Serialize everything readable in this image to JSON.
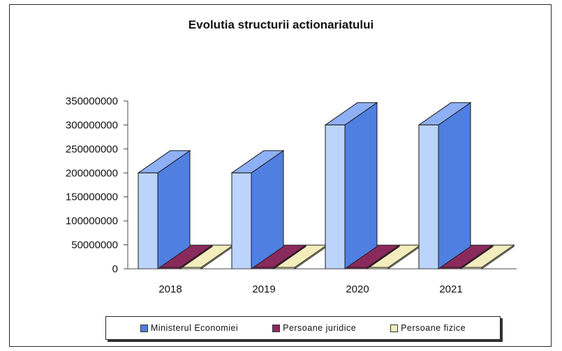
{
  "chart_data": {
    "type": "bar",
    "title": "Evolutia structurii actionariatului",
    "categories": [
      "2018",
      "2019",
      "2020",
      "2021"
    ],
    "series": [
      {
        "name": "Ministerul Economiei",
        "values": [
          200000000,
          200000000,
          300000000,
          300000000
        ],
        "color": "#bcd4fb",
        "side": "#4f7fe0",
        "top": "#8fb0f5"
      },
      {
        "name": "Persoane juridice",
        "values": [
          1000000,
          1000000,
          1000000,
          1000000
        ],
        "color": "#8a2a5c",
        "side": "#6c1f47",
        "top": "#8a2a5c"
      },
      {
        "name": "Persoane fizice",
        "values": [
          500000,
          500000,
          500000,
          500000
        ],
        "color": "#f3edbd",
        "side": "#e3dca3",
        "top": "#f3edbd"
      }
    ],
    "ylim": [
      0,
      350000000
    ],
    "yticks": [
      "0",
      "50000000",
      "100000000",
      "150000000",
      "200000000",
      "250000000",
      "300000000",
      "350000000"
    ],
    "grid": false,
    "legend_position": "bottom"
  }
}
